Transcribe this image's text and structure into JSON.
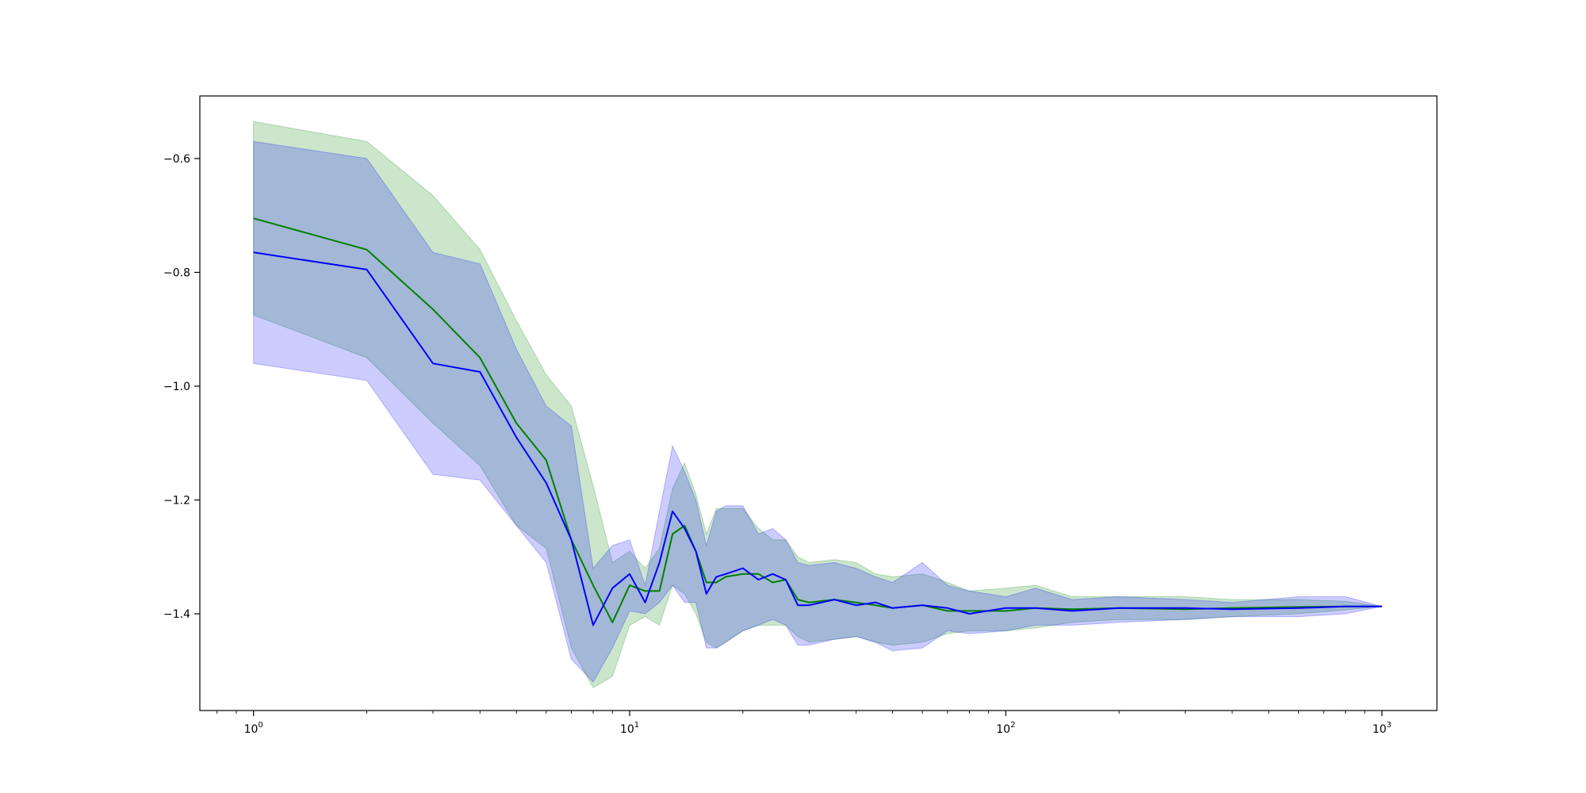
{
  "chart_data": {
    "type": "line",
    "title": "",
    "xlabel": "",
    "ylabel": "",
    "xscale": "log",
    "yscale": "linear",
    "xlim": [
      0.72,
      1400
    ],
    "ylim": [
      -1.57,
      -0.49
    ],
    "grid": false,
    "legend": "none",
    "x_tick_values": [
      1,
      10,
      100,
      1000
    ],
    "x_tick_labels": [
      {
        "base": "10",
        "exp": "0"
      },
      {
        "base": "10",
        "exp": "1"
      },
      {
        "base": "10",
        "exp": "2"
      },
      {
        "base": "10",
        "exp": "3"
      }
    ],
    "y_tick_values": [
      -1.4,
      -1.2,
      -1.0,
      -0.8,
      -0.6
    ],
    "y_tick_labels": [
      "−1.4",
      "−1.2",
      "−1.0",
      "−0.8",
      "−0.6"
    ],
    "series": [
      {
        "color": "#008000",
        "band_color": "#008000",
        "band_opacity": 0.2,
        "points": [
          [
            1,
            -0.705,
            -0.535,
            -0.875
          ],
          [
            2,
            -0.76,
            -0.57,
            -0.95
          ],
          [
            3,
            -0.865,
            -0.665,
            -1.065
          ],
          [
            4,
            -0.95,
            -0.76,
            -1.14
          ],
          [
            5,
            -1.065,
            -0.885,
            -1.245
          ],
          [
            6,
            -1.13,
            -0.98,
            -1.285
          ],
          [
            7,
            -1.27,
            -1.035,
            -1.46
          ],
          [
            8,
            -1.35,
            -1.175,
            -1.53
          ],
          [
            9,
            -1.415,
            -1.31,
            -1.51
          ],
          [
            10,
            -1.35,
            -1.29,
            -1.42
          ],
          [
            11,
            -1.36,
            -1.32,
            -1.405
          ],
          [
            12,
            -1.36,
            -1.285,
            -1.42
          ],
          [
            13,
            -1.26,
            -1.18,
            -1.35
          ],
          [
            14,
            -1.245,
            -1.135,
            -1.365
          ],
          [
            15,
            -1.29,
            -1.19,
            -1.4
          ],
          [
            16,
            -1.345,
            -1.26,
            -1.45
          ],
          [
            17,
            -1.345,
            -1.215,
            -1.46
          ],
          [
            18,
            -1.335,
            -1.215,
            -1.45
          ],
          [
            20,
            -1.33,
            -1.215,
            -1.43
          ],
          [
            22,
            -1.33,
            -1.25,
            -1.42
          ],
          [
            24,
            -1.345,
            -1.27,
            -1.42
          ],
          [
            26,
            -1.34,
            -1.27,
            -1.42
          ],
          [
            28,
            -1.375,
            -1.3,
            -1.44
          ],
          [
            30,
            -1.38,
            -1.31,
            -1.45
          ],
          [
            35,
            -1.375,
            -1.305,
            -1.445
          ],
          [
            40,
            -1.38,
            -1.31,
            -1.44
          ],
          [
            45,
            -1.385,
            -1.33,
            -1.45
          ],
          [
            50,
            -1.39,
            -1.335,
            -1.455
          ],
          [
            60,
            -1.385,
            -1.33,
            -1.45
          ],
          [
            70,
            -1.395,
            -1.345,
            -1.435
          ],
          [
            80,
            -1.395,
            -1.36,
            -1.43
          ],
          [
            100,
            -1.395,
            -1.355,
            -1.43
          ],
          [
            120,
            -1.39,
            -1.35,
            -1.425
          ],
          [
            150,
            -1.392,
            -1.37,
            -1.415
          ],
          [
            200,
            -1.39,
            -1.37,
            -1.41
          ],
          [
            300,
            -1.392,
            -1.37,
            -1.41
          ],
          [
            400,
            -1.39,
            -1.375,
            -1.405
          ],
          [
            600,
            -1.388,
            -1.375,
            -1.4
          ],
          [
            800,
            -1.387,
            -1.378,
            -1.393
          ],
          [
            1000,
            -1.387,
            -1.387,
            -1.387
          ]
        ]
      },
      {
        "color": "#0000ff",
        "band_color": "#0000ff",
        "band_opacity": 0.2,
        "points": [
          [
            1,
            -0.765,
            -0.57,
            -0.96
          ],
          [
            2,
            -0.795,
            -0.6,
            -0.99
          ],
          [
            3,
            -0.96,
            -0.765,
            -1.155
          ],
          [
            4,
            -0.975,
            -0.785,
            -1.165
          ],
          [
            5,
            -1.09,
            -0.935,
            -1.245
          ],
          [
            6,
            -1.17,
            -1.035,
            -1.31
          ],
          [
            7,
            -1.27,
            -1.07,
            -1.48
          ],
          [
            8,
            -1.42,
            -1.32,
            -1.52
          ],
          [
            9,
            -1.355,
            -1.28,
            -1.46
          ],
          [
            10,
            -1.33,
            -1.27,
            -1.395
          ],
          [
            11,
            -1.38,
            -1.35,
            -1.4
          ],
          [
            12,
            -1.31,
            -1.22,
            -1.38
          ],
          [
            13,
            -1.22,
            -1.105,
            -1.35
          ],
          [
            14,
            -1.25,
            -1.15,
            -1.38
          ],
          [
            15,
            -1.29,
            -1.2,
            -1.38
          ],
          [
            16,
            -1.365,
            -1.28,
            -1.46
          ],
          [
            17,
            -1.335,
            -1.22,
            -1.46
          ],
          [
            18,
            -1.33,
            -1.21,
            -1.45
          ],
          [
            20,
            -1.32,
            -1.21,
            -1.43
          ],
          [
            22,
            -1.34,
            -1.26,
            -1.42
          ],
          [
            24,
            -1.33,
            -1.25,
            -1.41
          ],
          [
            26,
            -1.34,
            -1.27,
            -1.42
          ],
          [
            28,
            -1.385,
            -1.31,
            -1.455
          ],
          [
            30,
            -1.385,
            -1.315,
            -1.455
          ],
          [
            35,
            -1.375,
            -1.31,
            -1.445
          ],
          [
            40,
            -1.385,
            -1.32,
            -1.44
          ],
          [
            45,
            -1.38,
            -1.335,
            -1.45
          ],
          [
            50,
            -1.39,
            -1.345,
            -1.465
          ],
          [
            60,
            -1.385,
            -1.31,
            -1.46
          ],
          [
            70,
            -1.39,
            -1.35,
            -1.43
          ],
          [
            80,
            -1.4,
            -1.36,
            -1.435
          ],
          [
            100,
            -1.39,
            -1.37,
            -1.43
          ],
          [
            120,
            -1.39,
            -1.355,
            -1.42
          ],
          [
            150,
            -1.395,
            -1.375,
            -1.42
          ],
          [
            200,
            -1.39,
            -1.37,
            -1.415
          ],
          [
            300,
            -1.39,
            -1.375,
            -1.41
          ],
          [
            400,
            -1.392,
            -1.38,
            -1.405
          ],
          [
            600,
            -1.39,
            -1.37,
            -1.405
          ],
          [
            800,
            -1.387,
            -1.37,
            -1.4
          ],
          [
            1000,
            -1.387,
            -1.387,
            -1.387
          ]
        ]
      }
    ]
  }
}
